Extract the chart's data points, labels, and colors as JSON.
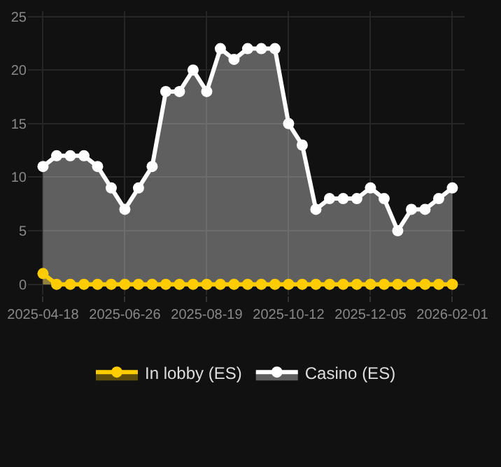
{
  "chart_data": {
    "type": "area",
    "categories": [
      "2025-04-18",
      null,
      null,
      null,
      null,
      null,
      "2025-06-26",
      null,
      null,
      null,
      null,
      null,
      "2025-08-19",
      null,
      null,
      null,
      null,
      null,
      "2025-10-12",
      null,
      null,
      null,
      null,
      null,
      "2025-12-05",
      null,
      null,
      null,
      null,
      null,
      "2026-02-01"
    ],
    "series": [
      {
        "name": "In lobby (ES)",
        "color": "#ffcc00",
        "values": [
          1,
          0,
          0,
          0,
          0,
          0,
          0,
          0,
          0,
          0,
          0,
          0,
          0,
          0,
          0,
          0,
          0,
          0,
          0,
          0,
          0,
          0,
          0,
          0,
          0,
          0,
          0,
          0,
          0,
          0,
          0
        ]
      },
      {
        "name": "Casino (ES)",
        "color": "#ffffff",
        "values": [
          11,
          12,
          12,
          12,
          11,
          9,
          7,
          9,
          11,
          18,
          18,
          20,
          18,
          22,
          21,
          22,
          22,
          22,
          15,
          13,
          7,
          8,
          8,
          8,
          9,
          8,
          5,
          7,
          7,
          8,
          9
        ]
      }
    ],
    "ylim": [
      -1,
      25.5
    ],
    "yticks": [
      0,
      5,
      10,
      15,
      20,
      25
    ],
    "grid": true,
    "legend": "bottom",
    "marker": "circle",
    "line_style": "solid"
  }
}
